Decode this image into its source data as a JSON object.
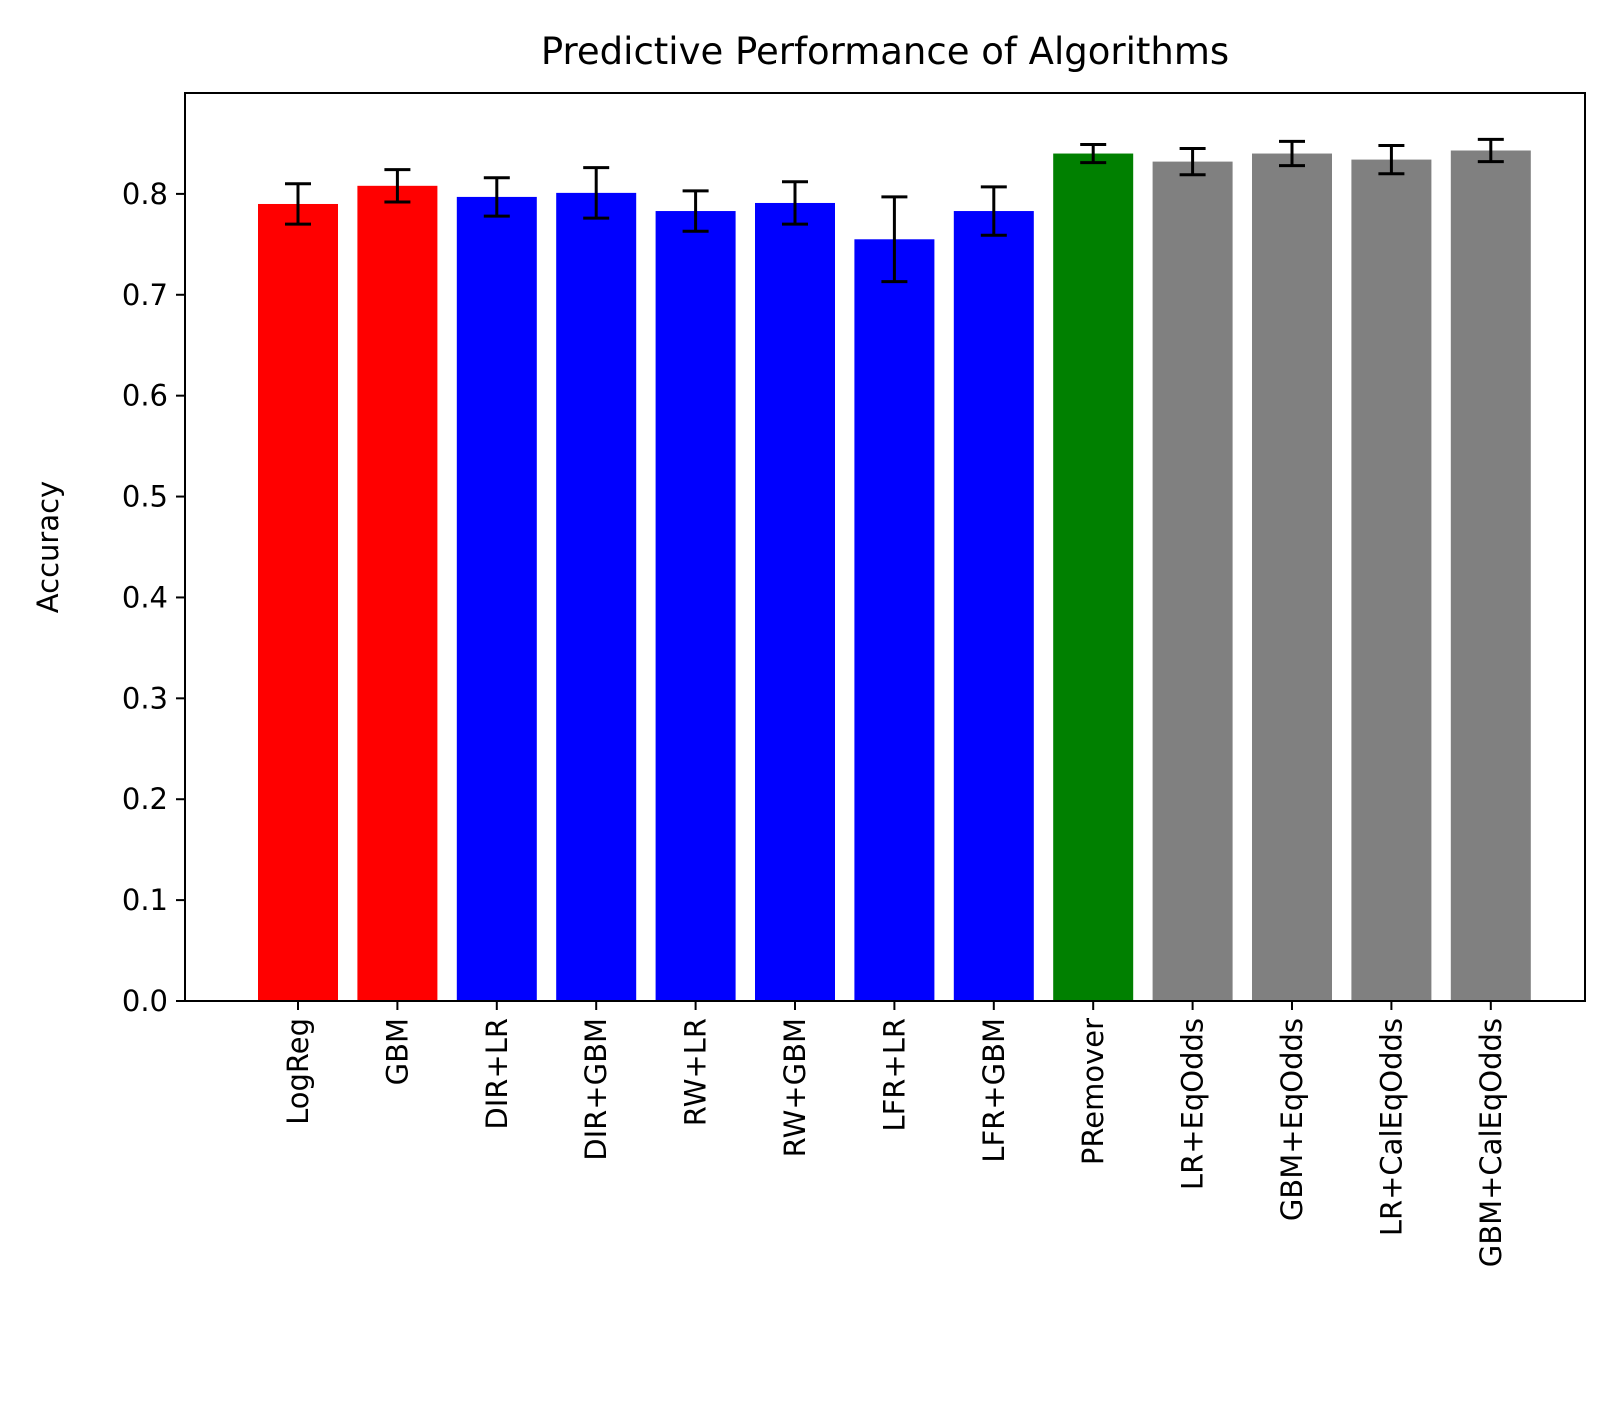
{
  "chart_data": {
    "type": "bar",
    "title": "Predictive Performance of Algorithms",
    "xlabel": "",
    "ylabel": "Accuracy",
    "ylim": [
      0,
      0.9
    ],
    "yticks": [
      "0.0",
      "0.1",
      "0.2",
      "0.3",
      "0.4",
      "0.5",
      "0.6",
      "0.7",
      "0.8"
    ],
    "categories": [
      "LogReg",
      "GBM",
      "DIR+LR",
      "DIR+GBM",
      "RW+LR",
      "RW+GBM",
      "LFR+LR",
      "LFR+GBM",
      "PRemover",
      "LR+EqOdds",
      "GBM+EqOdds",
      "LR+CalEqOdds",
      "GBM+CalEqOdds"
    ],
    "values": [
      0.79,
      0.808,
      0.797,
      0.801,
      0.783,
      0.791,
      0.755,
      0.783,
      0.84,
      0.832,
      0.84,
      0.834,
      0.843
    ],
    "errors": [
      0.02,
      0.016,
      0.019,
      0.025,
      0.02,
      0.021,
      0.042,
      0.024,
      0.009,
      0.013,
      0.012,
      0.014,
      0.011
    ],
    "colors": [
      "#ff0000",
      "#ff0000",
      "#0000ff",
      "#0000ff",
      "#0000ff",
      "#0000ff",
      "#0000ff",
      "#0000ff",
      "#008000",
      "#808080",
      "#808080",
      "#808080",
      "#808080"
    ],
    "error_color": "#000000",
    "grid": false,
    "legend": "none"
  }
}
